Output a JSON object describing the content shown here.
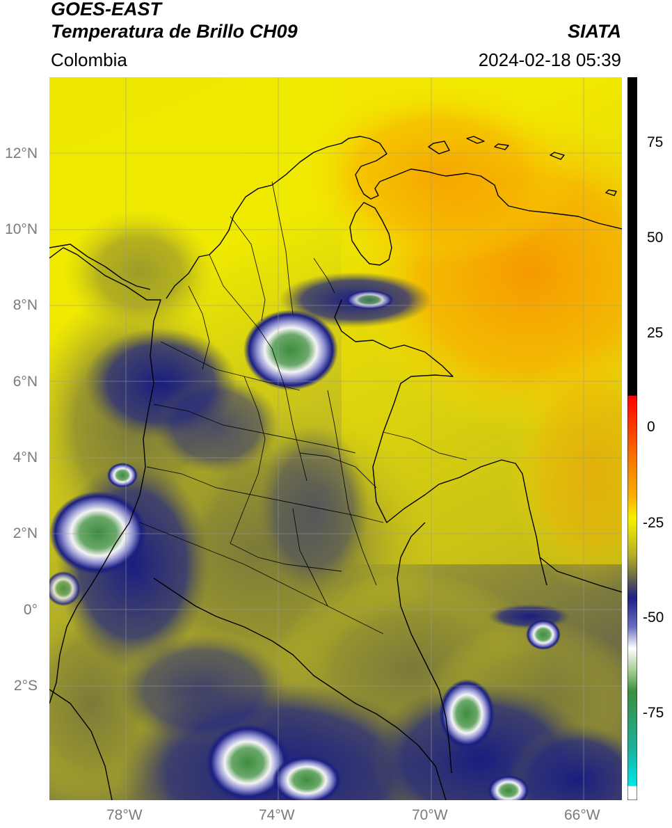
{
  "header": {
    "satellite": "GOES-EAST",
    "product": "Temperatura de Brillo CH09",
    "region": "Colombia",
    "agency": "SIATA",
    "datetime": "2024-02-18 05:39"
  },
  "map": {
    "lat_labels": [
      "12°N",
      "10°N",
      "8°N",
      "6°N",
      "4°N",
      "2°N",
      "0°",
      "2°S"
    ],
    "lon_labels": [
      "78°W",
      "74°W",
      "70°W",
      "66°W"
    ],
    "lon_range": [
      -80.0,
      -65.0
    ],
    "lat_range": [
      -5.0,
      14.0
    ],
    "colors": {
      "cold_core_green": "#3f8f3f",
      "cold_white": "#f2f2f2",
      "cold_navy": "#1b1f80",
      "mid_olive": "#9b9a2c",
      "warm_yellow": "#f2ec00",
      "warmest_orange": "#f5a300",
      "coastline": "#000000",
      "gridline": "#9a9a9a"
    }
  },
  "colorbar": {
    "tick_labels": [
      "75",
      "50",
      "25",
      "0",
      "-25",
      "-50",
      "-75"
    ],
    "stops": [
      {
        "color": "#000000",
        "label": "black"
      },
      {
        "color": "#ff0000",
        "label": "red"
      },
      {
        "color": "#f5a000",
        "label": "orange"
      },
      {
        "color": "#f7f000",
        "label": "yellow"
      },
      {
        "color": "#7d7a3a",
        "label": "olive"
      },
      {
        "color": "#1e1f85",
        "label": "navy"
      },
      {
        "color": "#ffffff",
        "label": "white"
      },
      {
        "color": "#3c8f3c",
        "label": "green"
      },
      {
        "color": "#00e6e6",
        "label": "cyan"
      }
    ]
  }
}
